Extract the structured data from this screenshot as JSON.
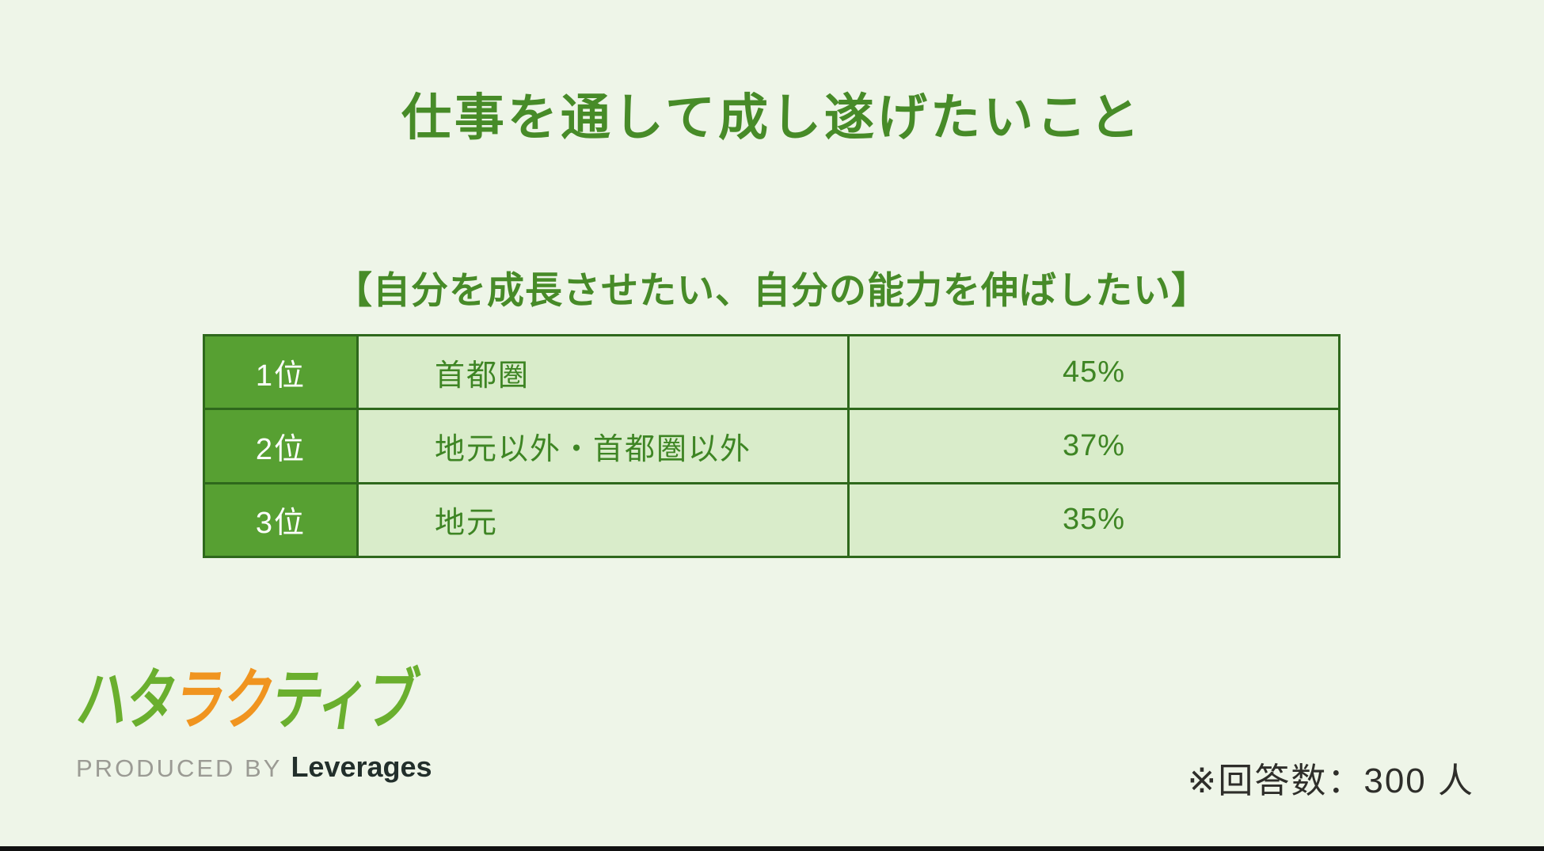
{
  "header": {
    "title": "仕事を通して成し遂げたいこと",
    "subtitle": "【自分を成長させたい、自分の能力を伸ばしたい】"
  },
  "table": {
    "rows": [
      {
        "rank": "1位",
        "label": "首都圏",
        "value": "45%"
      },
      {
        "rank": "2位",
        "label": "地元以外・首都圏以外",
        "value": "37%"
      },
      {
        "rank": "3位",
        "label": "地元",
        "value": "35%"
      }
    ]
  },
  "chart_data": {
    "type": "table",
    "title": "仕事を通して成し遂げたいこと",
    "subtitle": "【自分を成長させたい、自分の能力を伸ばしたい】",
    "ranks": [
      "1位",
      "2位",
      "3位"
    ],
    "categories": [
      "首都圏",
      "地元以外・首都圏以外",
      "地元"
    ],
    "values": [
      45,
      37,
      35
    ],
    "unit": "%",
    "note": "※回答数：300 人",
    "respondents": 300
  },
  "footer": {
    "logo_parts": [
      {
        "text": "ハタ",
        "color": "#6aaf2e"
      },
      {
        "text": "ラク",
        "color": "#f0941f"
      },
      {
        "text": "ティブ",
        "color": "#6aaf2e"
      }
    ],
    "produced_by": "PRODUCED BY",
    "company": "Leverages",
    "note": "※回答数：300 人"
  },
  "colors": {
    "background": "#eef5e8",
    "title_green": "#478b28",
    "table_border": "#2e681c",
    "rank_cell_bg": "#57a032",
    "rank_cell_text": "#ffffff",
    "data_cell_bg": "#d9ecca",
    "data_cell_text": "#3e8524",
    "logo_green": "#6aaf2e",
    "logo_orange": "#f0941f",
    "produced_by_gray": "#9b9b94",
    "company_dark": "#222f2b",
    "note_dark": "#2e2e2a",
    "bottom_bar": "#111111"
  }
}
